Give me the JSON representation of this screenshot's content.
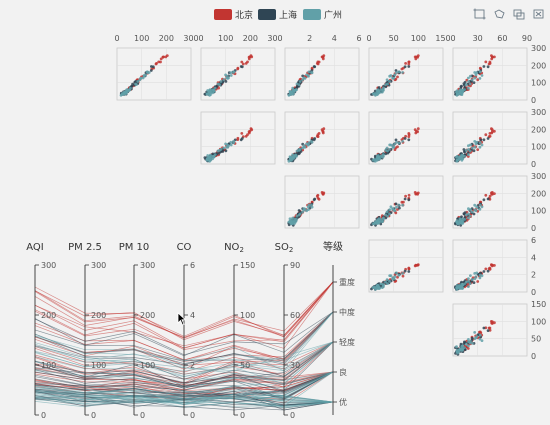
{
  "legend": [
    {
      "name": "北京",
      "color": "#c23531"
    },
    {
      "name": "上海",
      "color": "#2f4554"
    },
    {
      "name": "广州",
      "color": "#61a0a8"
    }
  ],
  "toolbox": [
    {
      "icon": "rect-select-icon"
    },
    {
      "icon": "polygon-select-icon"
    },
    {
      "icon": "keep-selection-icon"
    },
    {
      "icon": "clear-selection-icon"
    }
  ],
  "chart_data": [
    {
      "type": "scatter-matrix",
      "dimensions": [
        "AQI",
        "PM 2.5",
        "PM 10",
        "CO",
        "NO2",
        "SO2"
      ],
      "axis_ticks": {
        "AQI": [
          0,
          100,
          200,
          300
        ],
        "PM 2.5": [
          0,
          100,
          200,
          300
        ],
        "PM 10": [
          0,
          100,
          200,
          300
        ],
        "CO": [
          2,
          4,
          6
        ],
        "NO2": [
          0,
          50,
          100,
          150
        ],
        "SO2": [
          0,
          30,
          60,
          90
        ]
      },
      "side_ticks": {
        "row1": [
          "0",
          "100",
          "200",
          "300"
        ],
        "row2": [
          "0",
          "100",
          "200",
          "300"
        ],
        "row3": [
          "0",
          "100",
          "200",
          "300"
        ],
        "row4": [
          "0",
          "2",
          "4",
          "6"
        ],
        "row5": [
          "0",
          "50",
          "100",
          "150"
        ]
      },
      "series": [
        "北京",
        "上海",
        "广州"
      ]
    },
    {
      "type": "parallel",
      "axes": [
        {
          "name": "AQI",
          "ticks": [
            "0",
            "100",
            "200",
            "300"
          ],
          "max": 300
        },
        {
          "name": "PM 2.5",
          "ticks": [
            "0",
            "100",
            "200",
            "300"
          ],
          "max": 300
        },
        {
          "name": "PM 10",
          "ticks": [
            "0",
            "100",
            "200",
            "300"
          ],
          "max": 300
        },
        {
          "name": "CO",
          "ticks": [
            "0",
            "2",
            "4",
            "6"
          ],
          "max": 6
        },
        {
          "name": "NO2",
          "ticks": [
            "0",
            "50",
            "100",
            "150"
          ],
          "max": 150
        },
        {
          "name": "SO2",
          "ticks": [
            "0",
            "30",
            "60",
            "90"
          ],
          "max": 90
        },
        {
          "name": "等级",
          "categories": [
            "优",
            "良",
            "轻度",
            "中度",
            "重度"
          ]
        }
      ],
      "series": [
        "北京",
        "上海",
        "广州"
      ]
    }
  ]
}
